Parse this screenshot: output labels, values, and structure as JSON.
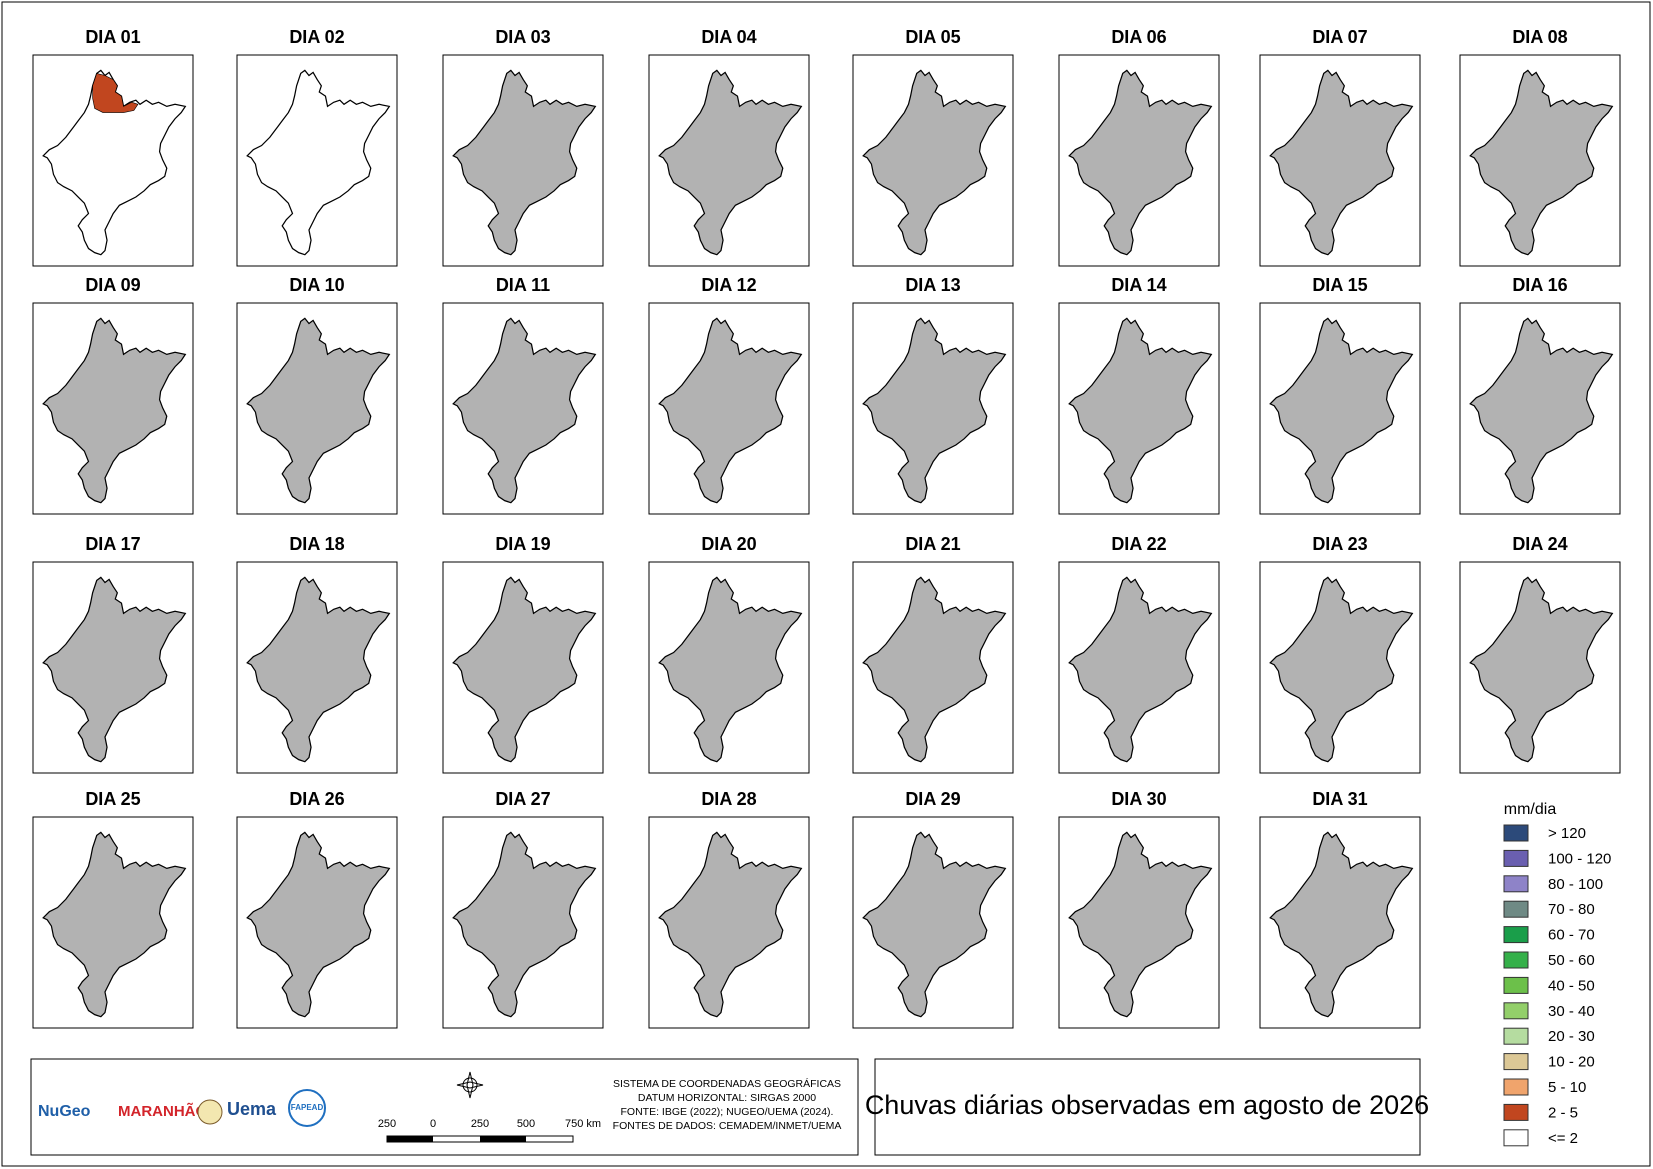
{
  "title": "Chuvas diárias observadas em agosto de 2026",
  "panels": [
    {
      "label": "DIA 01",
      "fill": "#ffffff",
      "rain_fill": "#c1461f"
    },
    {
      "label": "DIA 02",
      "fill": "#ffffff"
    },
    {
      "label": "DIA 03",
      "fill": "#b2b2b2"
    },
    {
      "label": "DIA 04",
      "fill": "#b2b2b2"
    },
    {
      "label": "DIA 05",
      "fill": "#b2b2b2"
    },
    {
      "label": "DIA 06",
      "fill": "#b2b2b2"
    },
    {
      "label": "DIA 07",
      "fill": "#b2b2b2"
    },
    {
      "label": "DIA 08",
      "fill": "#b2b2b2"
    },
    {
      "label": "DIA 09",
      "fill": "#b2b2b2"
    },
    {
      "label": "DIA 10",
      "fill": "#b2b2b2"
    },
    {
      "label": "DIA 11",
      "fill": "#b2b2b2"
    },
    {
      "label": "DIA 12",
      "fill": "#b2b2b2"
    },
    {
      "label": "DIA 13",
      "fill": "#b2b2b2"
    },
    {
      "label": "DIA 14",
      "fill": "#b2b2b2"
    },
    {
      "label": "DIA 15",
      "fill": "#b2b2b2"
    },
    {
      "label": "DIA 16",
      "fill": "#b2b2b2"
    },
    {
      "label": "DIA 17",
      "fill": "#b2b2b2"
    },
    {
      "label": "DIA 18",
      "fill": "#b2b2b2"
    },
    {
      "label": "DIA 19",
      "fill": "#b2b2b2"
    },
    {
      "label": "DIA 20",
      "fill": "#b2b2b2"
    },
    {
      "label": "DIA 21",
      "fill": "#b2b2b2"
    },
    {
      "label": "DIA 22",
      "fill": "#b2b2b2"
    },
    {
      "label": "DIA 23",
      "fill": "#b2b2b2"
    },
    {
      "label": "DIA 24",
      "fill": "#b2b2b2"
    },
    {
      "label": "DIA 25",
      "fill": "#b2b2b2"
    },
    {
      "label": "DIA 26",
      "fill": "#b2b2b2"
    },
    {
      "label": "DIA 27",
      "fill": "#b2b2b2"
    },
    {
      "label": "DIA 28",
      "fill": "#b2b2b2"
    },
    {
      "label": "DIA 29",
      "fill": "#b2b2b2"
    },
    {
      "label": "DIA 30",
      "fill": "#b2b2b2"
    },
    {
      "label": "DIA 31",
      "fill": "#b2b2b2"
    }
  ],
  "legend": {
    "title": "mm/dia",
    "items": [
      {
        "label": "> 120",
        "color": "#2c4a7a"
      },
      {
        "label": "100 - 120",
        "color": "#6a5fb0"
      },
      {
        "label": "80 - 100",
        "color": "#8e83c8"
      },
      {
        "label": "70 - 80",
        "color": "#6f8a85"
      },
      {
        "label": "60 - 70",
        "color": "#1a9e4a"
      },
      {
        "label": "50 - 60",
        "color": "#35b04a"
      },
      {
        "label": "40 - 50",
        "color": "#6cc04a"
      },
      {
        "label": "30 - 40",
        "color": "#93cf6a"
      },
      {
        "label": "20 - 30",
        "color": "#b5dca0"
      },
      {
        "label": "10 - 20",
        "color": "#dcc896"
      },
      {
        "label": "5 - 10",
        "color": "#f0a46c"
      },
      {
        "label": "2 - 5",
        "color": "#c1461f"
      },
      {
        "label": "<= 2",
        "color": "#ffffff"
      }
    ]
  },
  "footer": {
    "lines": [
      "SISTEMA DE COORDENADAS GEOGRÁFICAS",
      "DATUM HORIZONTAL: SIRGAS 2000",
      "FONTE: IBGE (2022); NUGEO/UEMA (2024).",
      "FONTES DE DADOS: CEMADEM/INMET/UEMA"
    ],
    "scale_bar": [
      "250",
      "0",
      "250",
      "500",
      "750 km"
    ],
    "logos": [
      "NuGeo",
      "MARANHÃO",
      "Uema",
      "FAPEAD"
    ]
  }
}
